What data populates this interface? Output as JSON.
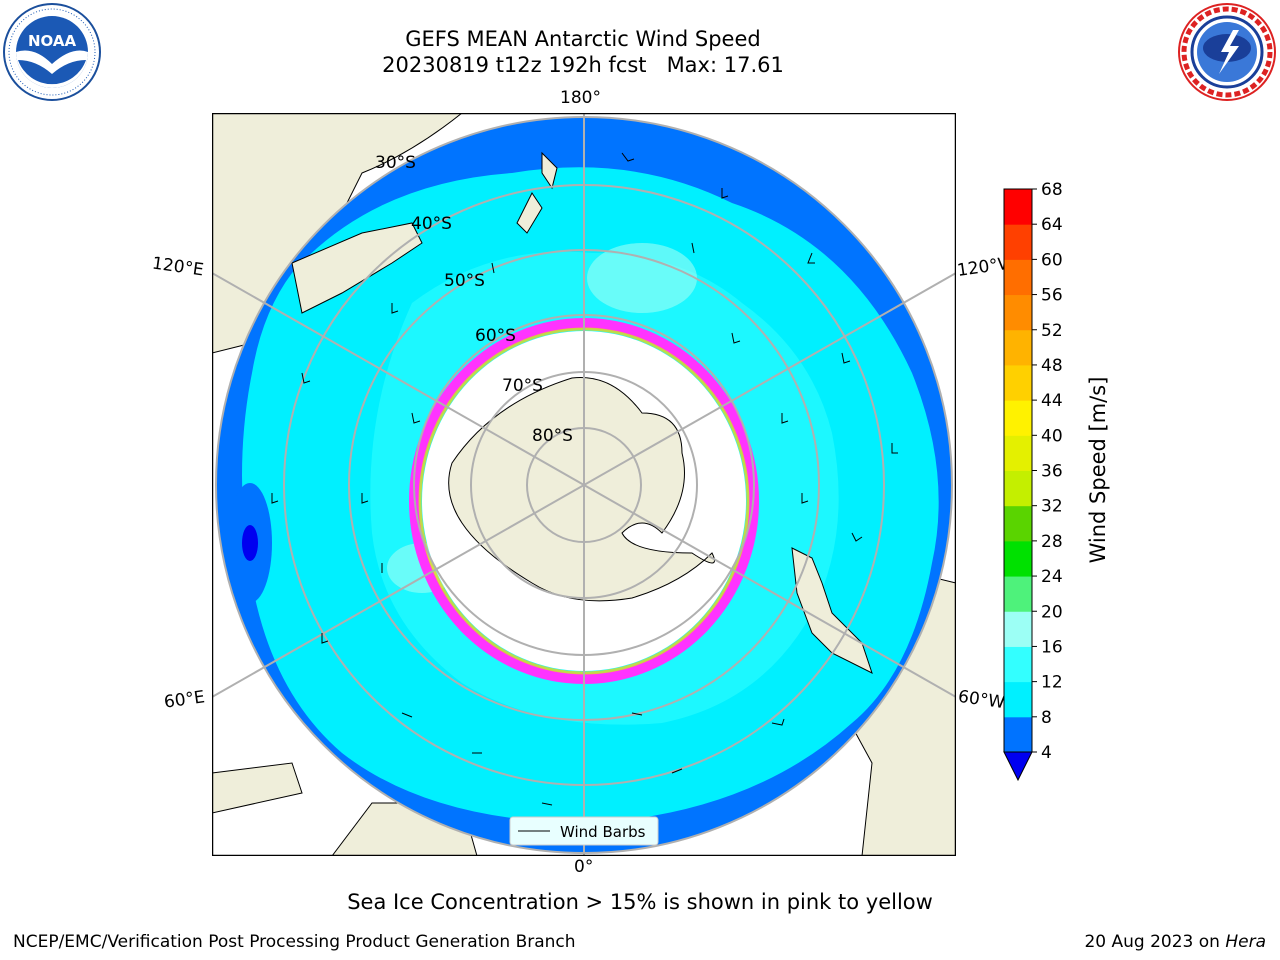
{
  "header": {
    "title_line1": "GEFS MEAN Antarctic Wind Speed",
    "title_line2": "20230819 t12z 192h fcst   Max: 17.61"
  },
  "logos": {
    "left": {
      "name": "noaa-logo",
      "text": "NOAA",
      "ring_text": "NATIONAL OCEANIC AND ATMOSPHERIC ADMINISTRATION · U.S. DEPARTMENT OF COMMERCE"
    },
    "right": {
      "name": "nws-logo",
      "ring_text": "NATIONAL WEATHER SERVICE"
    }
  },
  "map": {
    "projection": "south-polar-stereographic",
    "longitude_labels": {
      "top": "180°",
      "bottom": "0°",
      "upper_left": "120°E",
      "upper_right": "120°W",
      "lower_left": "60°E",
      "lower_right": "60°W"
    },
    "latitude_labels": [
      "30°S",
      "40°S",
      "50°S",
      "60°S",
      "70°S",
      "80°S"
    ],
    "legend_label": "Wind Barbs",
    "colors": {
      "ocean_low": "#0074ff",
      "ocean_mid": "#00f0ff",
      "ocean_high": "#4dffff",
      "land": "#efeeda",
      "sea_ice_edge": "#ff33ff",
      "grid": "#b0b0b0"
    }
  },
  "colorbar": {
    "label": "Wind Speed [m/s]",
    "ticks": [
      "4",
      "8",
      "12",
      "16",
      "20",
      "24",
      "28",
      "32",
      "36",
      "40",
      "44",
      "48",
      "52",
      "56",
      "60",
      "64",
      "68"
    ],
    "colors": [
      "#0073ff",
      "#00f0ff",
      "#33ffff",
      "#9cfff5",
      "#4ef27b",
      "#00e100",
      "#5ad400",
      "#c4ef00",
      "#e4f000",
      "#fff200",
      "#ffd000",
      "#ffb300",
      "#ff8c00",
      "#ff6e00",
      "#ff4000",
      "#ff0000"
    ],
    "extend_min_color": "#0000f0"
  },
  "caption": "Sea Ice Concentration > 15% is shown in pink to yellow",
  "footer": {
    "left": "NCEP/EMC/Verification Post Processing Product Generation Branch",
    "right_date": "20 Aug 2023 on ",
    "right_host": "Hera"
  }
}
